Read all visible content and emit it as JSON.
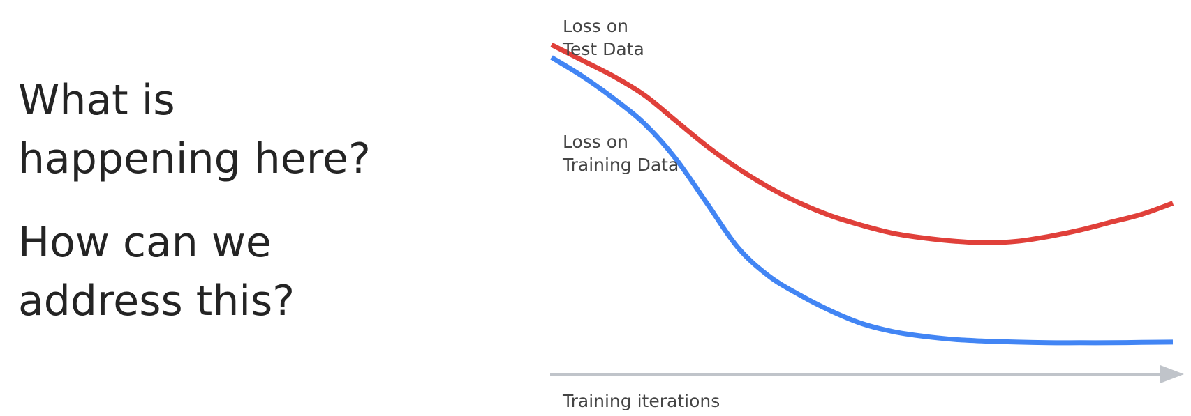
{
  "slide": {
    "question_1": [
      "What is",
      "happening here?"
    ],
    "question_2": [
      "How can we",
      "address this?"
    ]
  },
  "chart_data": {
    "type": "line",
    "title": "",
    "xlabel": "Training iterations",
    "ylabel": "",
    "x_axis": {
      "ticks": false,
      "arrow": true,
      "color": "#c0c4ca"
    },
    "y_axis": {
      "visible": false
    },
    "grid": false,
    "legend": "none",
    "x": [
      0,
      5,
      10,
      15,
      20,
      25,
      30,
      35,
      40,
      45,
      50,
      55,
      60,
      65,
      70,
      75,
      80,
      85,
      90,
      95,
      100
    ],
    "series": [
      {
        "name": "Loss on Test Data",
        "label_lines": [
          "Loss on",
          "Test Data"
        ],
        "color": "#e0403a",
        "values": [
          0.98,
          0.93,
          0.88,
          0.82,
          0.74,
          0.66,
          0.59,
          0.53,
          0.48,
          0.44,
          0.41,
          0.385,
          0.37,
          0.36,
          0.355,
          0.36,
          0.375,
          0.395,
          0.42,
          0.445,
          0.48
        ]
      },
      {
        "name": "Loss on Training Data",
        "label_lines": [
          "Loss on",
          "Training Data"
        ],
        "color": "#4285f4",
        "values": [
          0.94,
          0.88,
          0.81,
          0.73,
          0.62,
          0.48,
          0.34,
          0.25,
          0.19,
          0.14,
          0.1,
          0.075,
          0.06,
          0.05,
          0.045,
          0.042,
          0.04,
          0.04,
          0.04,
          0.041,
          0.042
        ]
      }
    ],
    "xlim": [
      0,
      100
    ],
    "ylim": [
      0,
      1
    ]
  }
}
